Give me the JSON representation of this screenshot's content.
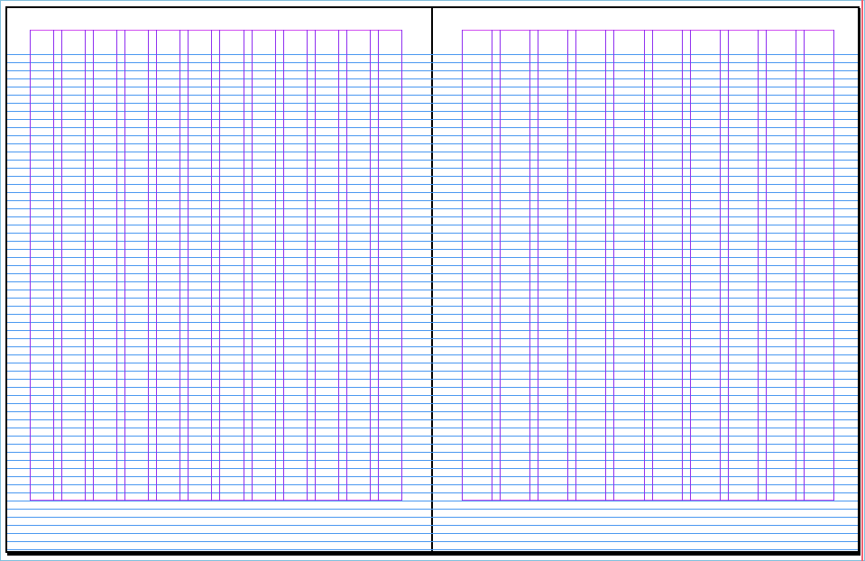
{
  "spread": {
    "left_page": {
      "columns": 12
    },
    "right_page": {
      "columns": 10
    }
  },
  "colors": {
    "baseline_grid": "#4a98f0",
    "margin_guide": "#d050f0",
    "column_guide": "#9030f0",
    "bleed_guide": "#f06070",
    "page_border": "#000000"
  }
}
